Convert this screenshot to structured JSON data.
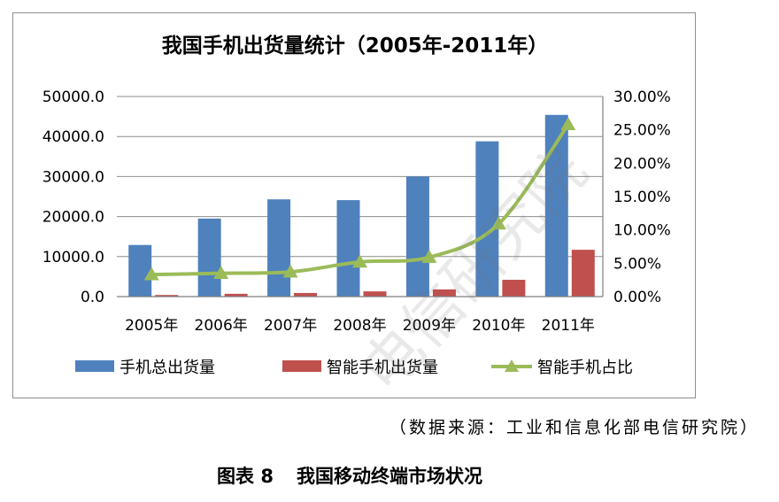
{
  "chart_data": {
    "type": "bar",
    "title": "我国手机出货量统计（2005年-2011年）",
    "categories": [
      "2005年",
      "2006年",
      "2007年",
      "2008年",
      "2009年",
      "2010年",
      "2011年"
    ],
    "series": [
      {
        "name": "手机总出货量",
        "type": "bar",
        "axis": "left",
        "color": "#4f81bd",
        "values": [
          12900,
          19500,
          24300,
          24100,
          30000,
          38800,
          45400
        ]
      },
      {
        "name": "智能手机出货量",
        "type": "bar",
        "axis": "left",
        "color": "#c0504d",
        "values": [
          400,
          700,
          900,
          1300,
          1800,
          4200,
          11700
        ]
      },
      {
        "name": "智能手机占比",
        "type": "line",
        "axis": "right",
        "color": "#9bbb59",
        "marker": "triangle",
        "values": [
          3.3,
          3.5,
          3.7,
          5.2,
          5.9,
          10.9,
          25.8
        ]
      }
    ],
    "y_left": {
      "min": 0,
      "max": 50000,
      "step": 10000,
      "tick_labels": [
        "0.0",
        "10000.0",
        "20000.0",
        "30000.0",
        "40000.0",
        "50000.0"
      ]
    },
    "y_right": {
      "min": 0,
      "max": 30,
      "step": 5,
      "tick_labels": [
        "0.00%",
        "5.00%",
        "10.00%",
        "15.00%",
        "20.00%",
        "25.00%",
        "30.00%"
      ]
    },
    "grid": true,
    "legend_position": "bottom"
  },
  "watermark": "电信研究院",
  "source_note": "（数据来源：工业和信息化部电信研究院）",
  "figure_caption": {
    "number": "图表 8",
    "text": "我国移动终端市场状况"
  }
}
